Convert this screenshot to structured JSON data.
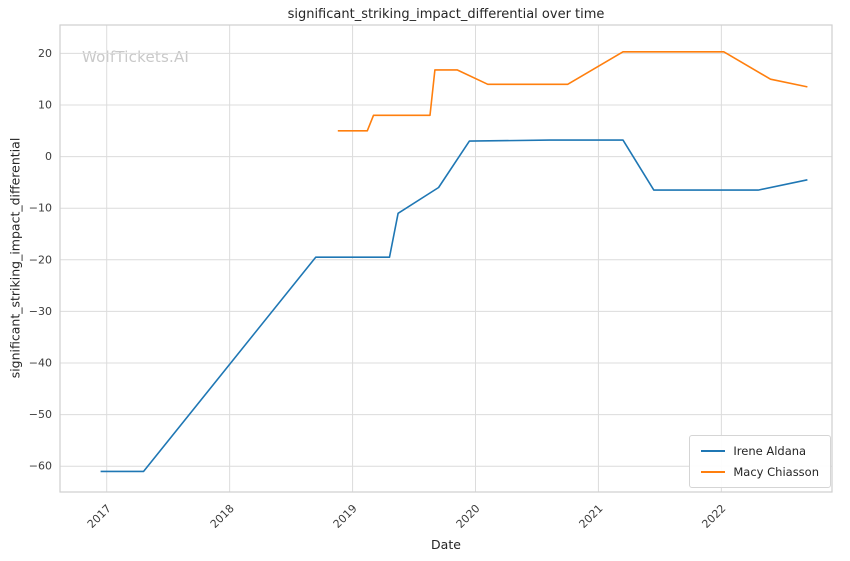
{
  "watermark": "WolfTickets.AI",
  "chart_data": {
    "type": "line",
    "title": "significant_striking_impact_differential over time",
    "xlabel": "Date",
    "ylabel": "significant_striking_impact_differential",
    "grid": true,
    "legend_position": "lower right",
    "xlim": [
      2016.62,
      2022.9
    ],
    "ylim": [
      -65,
      25.5
    ],
    "x_ticks": [
      2017,
      2018,
      2019,
      2020,
      2021,
      2022
    ],
    "y_ticks": [
      20,
      10,
      0,
      -10,
      -20,
      -30,
      -40,
      -50,
      -60
    ],
    "line_width": 1.6,
    "series": [
      {
        "name": "Irene Aldana",
        "color": "#1f77b4",
        "points": [
          [
            2016.95,
            -61
          ],
          [
            2017.3,
            -61
          ],
          [
            2018.7,
            -19.5
          ],
          [
            2019.3,
            -19.5
          ],
          [
            2019.37,
            -11
          ],
          [
            2019.7,
            -6
          ],
          [
            2019.95,
            3
          ],
          [
            2020.6,
            3.2
          ],
          [
            2021.2,
            3.2
          ],
          [
            2021.45,
            -6.5
          ],
          [
            2022.3,
            -6.5
          ],
          [
            2022.7,
            -4.5
          ]
        ]
      },
      {
        "name": "Macy Chiasson",
        "color": "#ff7f0e",
        "points": [
          [
            2018.88,
            5
          ],
          [
            2019.12,
            5
          ],
          [
            2019.17,
            8
          ],
          [
            2019.63,
            8
          ],
          [
            2019.67,
            16.8
          ],
          [
            2019.85,
            16.8
          ],
          [
            2020.1,
            14
          ],
          [
            2020.75,
            14
          ],
          [
            2021.2,
            20.3
          ],
          [
            2022.02,
            20.3
          ],
          [
            2022.4,
            15
          ],
          [
            2022.7,
            13.5
          ]
        ]
      }
    ]
  }
}
